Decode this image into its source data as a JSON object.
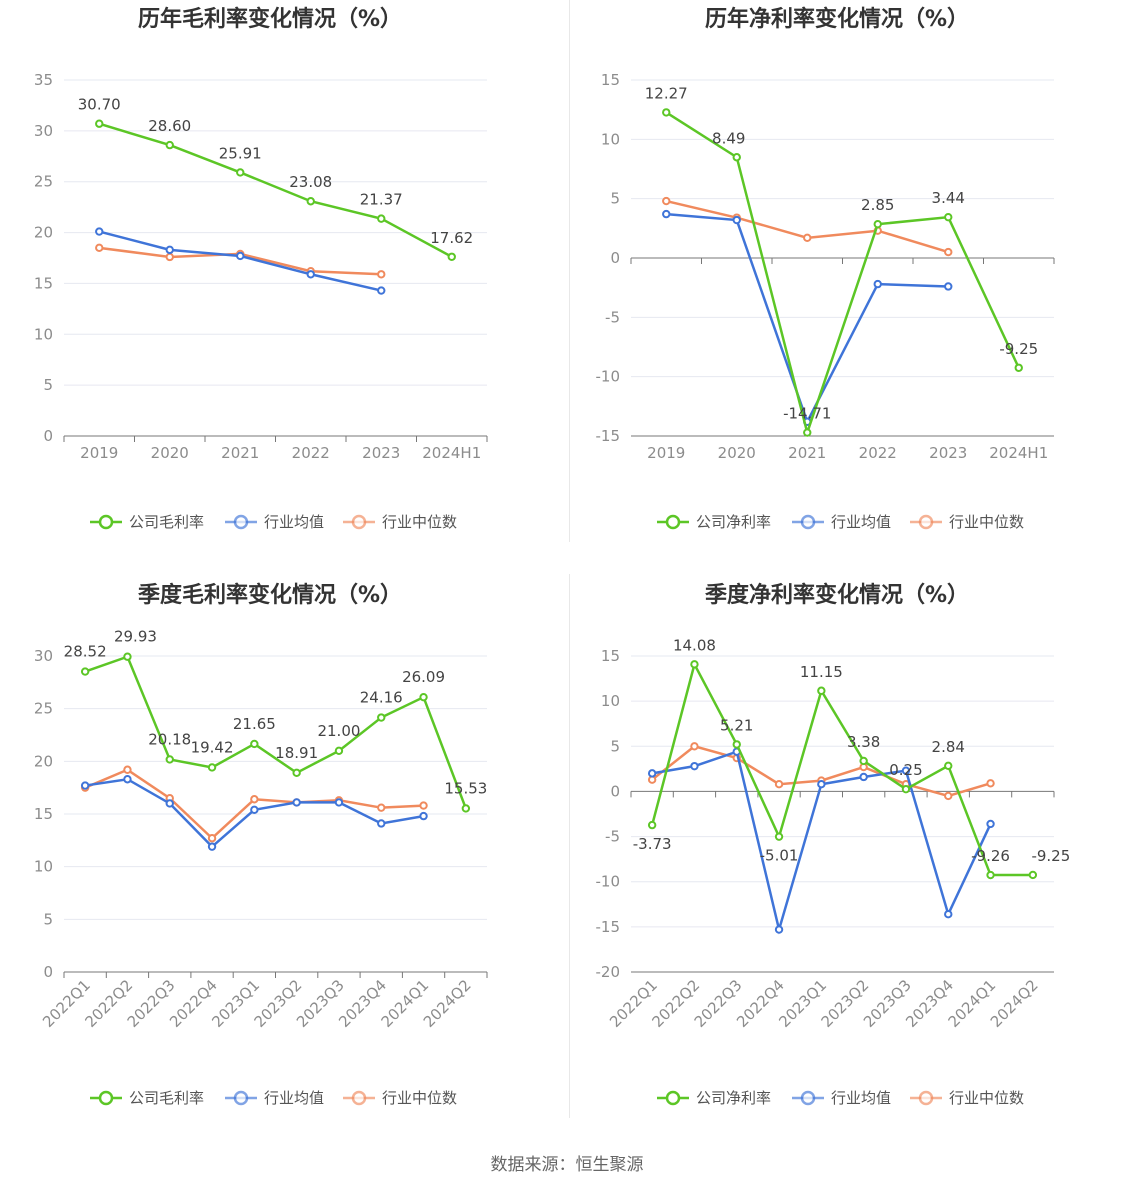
{
  "source": "数据来源：恒生聚源",
  "colors": {
    "company": "#5cc626",
    "avg": "#3f74d8",
    "median": "#f08a5d",
    "grid": "#e6e8f0",
    "axis": "#777777"
  },
  "legend": {
    "company_gross": "公司毛利率",
    "company_net": "公司净利率",
    "avg": "行业均值",
    "median": "行业中位数"
  },
  "chart_data": [
    {
      "id": "annual-gross",
      "type": "line",
      "title": "历年毛利率变化情况（%）",
      "categories": [
        "2019",
        "2020",
        "2021",
        "2022",
        "2023",
        "2024H1"
      ],
      "ylim": [
        0,
        35
      ],
      "yticks": [
        0,
        5,
        10,
        15,
        20,
        25,
        30,
        35
      ],
      "rotate_x": false,
      "series": [
        {
          "name": "公司毛利率",
          "key": "company",
          "values": [
            30.7,
            28.6,
            25.91,
            23.08,
            21.37,
            17.62
          ],
          "labels": [
            "30.70",
            "28.60",
            "25.91",
            "23.08",
            "21.37",
            "17.62"
          ]
        },
        {
          "name": "行业均值",
          "key": "avg",
          "values": [
            20.1,
            18.3,
            17.7,
            15.9,
            14.3,
            null
          ]
        },
        {
          "name": "行业中位数",
          "key": "median",
          "values": [
            18.5,
            17.6,
            17.9,
            16.2,
            15.9,
            null
          ]
        }
      ]
    },
    {
      "id": "annual-net",
      "type": "line",
      "title": "历年净利率变化情况（%）",
      "categories": [
        "2019",
        "2020",
        "2021",
        "2022",
        "2023",
        "2024H1"
      ],
      "ylim": [
        -15,
        15
      ],
      "yticks": [
        -15,
        -10,
        -5,
        0,
        5,
        10,
        15
      ],
      "rotate_x": false,
      "series": [
        {
          "name": "公司净利率",
          "key": "company",
          "values": [
            12.27,
            8.49,
            -14.71,
            2.85,
            3.44,
            -9.25
          ],
          "labels": [
            "12.27",
            "8.49",
            "-14.71",
            "2.85",
            "3.44",
            "-9.25"
          ]
        },
        {
          "name": "行业均值",
          "key": "avg",
          "values": [
            3.7,
            3.2,
            -13.8,
            -2.2,
            -2.4,
            null
          ]
        },
        {
          "name": "行业中位数",
          "key": "median",
          "values": [
            4.8,
            3.4,
            1.7,
            2.3,
            0.5,
            null
          ]
        }
      ]
    },
    {
      "id": "quarterly-gross",
      "type": "line",
      "title": "季度毛利率变化情况（%）",
      "categories": [
        "2022Q1",
        "2022Q2",
        "2022Q3",
        "2022Q4",
        "2023Q1",
        "2023Q2",
        "2023Q3",
        "2023Q4",
        "2024Q1",
        "2024Q2"
      ],
      "ylim": [
        0,
        30
      ],
      "yticks": [
        0,
        5,
        10,
        15,
        20,
        25,
        30
      ],
      "rotate_x": true,
      "series": [
        {
          "name": "公司毛利率",
          "key": "company",
          "values": [
            28.52,
            29.93,
            20.18,
            19.42,
            21.65,
            18.91,
            21.0,
            24.16,
            26.09,
            15.53
          ],
          "labels": [
            "28.52",
            "29.93",
            "20.18",
            "19.42",
            "21.65",
            "18.91",
            "21.00",
            "24.16",
            "26.09",
            "15.53"
          ]
        },
        {
          "name": "行业均值",
          "key": "avg",
          "values": [
            17.7,
            18.3,
            16.0,
            11.9,
            15.4,
            16.1,
            16.1,
            14.1,
            14.8,
            null
          ]
        },
        {
          "name": "行业中位数",
          "key": "median",
          "values": [
            17.5,
            19.2,
            16.5,
            12.7,
            16.4,
            16.1,
            16.3,
            15.6,
            15.8,
            null
          ]
        }
      ]
    },
    {
      "id": "quarterly-net",
      "type": "line",
      "title": "季度净利率变化情况（%）",
      "categories": [
        "2022Q1",
        "2022Q2",
        "2022Q3",
        "2022Q4",
        "2023Q1",
        "2023Q2",
        "2023Q3",
        "2023Q4",
        "2024Q1",
        "2024Q2"
      ],
      "ylim": [
        -20,
        15
      ],
      "yticks": [
        -20,
        -15,
        -10,
        -5,
        0,
        5,
        10,
        15
      ],
      "rotate_x": true,
      "series": [
        {
          "name": "公司净利率",
          "key": "company",
          "values": [
            -3.73,
            14.08,
            5.21,
            -5.01,
            11.15,
            3.38,
            0.25,
            2.84,
            -9.26,
            -9.25
          ],
          "labels": [
            "-3.73",
            "14.08",
            "5.21",
            "-5.01",
            "11.15",
            "3.38",
            "0.25",
            "2.84",
            "-9.26",
            "-9.25"
          ]
        },
        {
          "name": "行业均值",
          "key": "avg",
          "values": [
            2.0,
            2.8,
            4.4,
            -15.3,
            0.8,
            1.6,
            2.3,
            -13.6,
            -3.6,
            null
          ]
        },
        {
          "name": "行业中位数",
          "key": "median",
          "values": [
            1.3,
            5.0,
            3.7,
            0.8,
            1.2,
            2.7,
            0.8,
            -0.5,
            0.9,
            null
          ]
        }
      ]
    }
  ]
}
